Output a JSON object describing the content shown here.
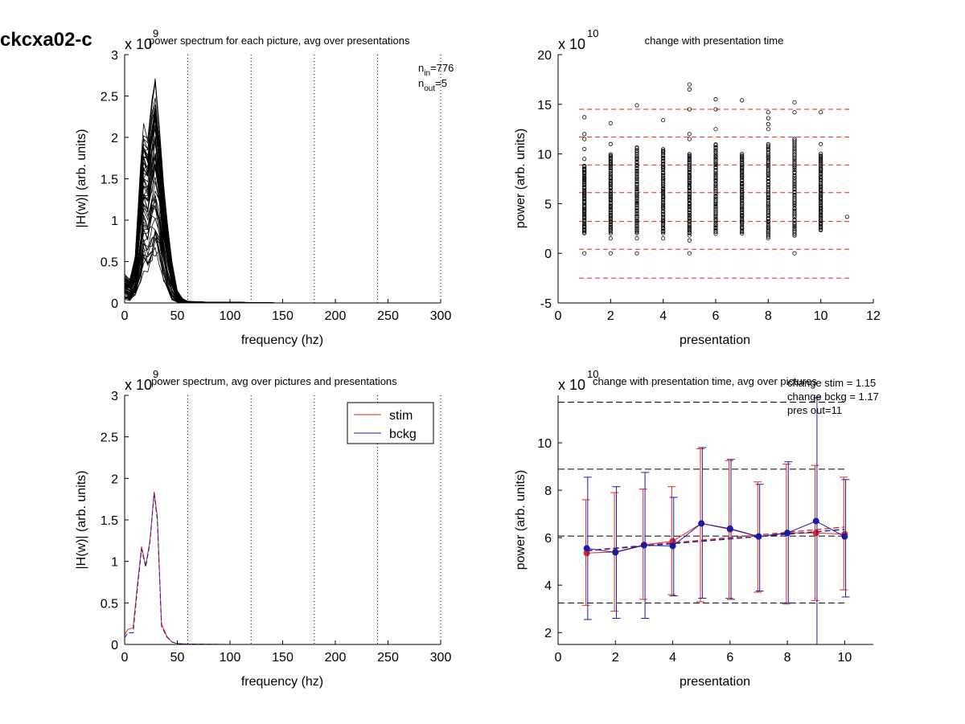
{
  "figure": {
    "title": "ckcxa02-c"
  },
  "chart_data": [
    {
      "type": "line",
      "title": "power spectrum for each picture, avg over presentations",
      "xlabel": "frequency (hz)",
      "ylabel": "|H(w)| (arb. units)",
      "exponent_label": "x 10",
      "exponent_power": "9",
      "xlim": [
        0,
        300
      ],
      "ylim": [
        0,
        3
      ],
      "xticks": [
        0,
        50,
        100,
        150,
        200,
        250,
        300
      ],
      "yticks": [
        0,
        0.5,
        1,
        1.5,
        2,
        2.5,
        3
      ],
      "ytick_labels": [
        "0",
        "0.5",
        "1",
        "1.5",
        "2",
        "2.5",
        "3"
      ],
      "vlines": [
        60,
        120,
        180,
        240,
        300
      ],
      "annotation": {
        "n_in_label": "n",
        "n_in_sub": "in",
        "n_in_value": "=776",
        "n_out_label": "n",
        "n_out_sub": "out",
        "n_out_value": "=5"
      },
      "x": [
        0,
        5,
        10,
        15,
        18,
        22,
        26,
        29,
        33,
        37,
        41,
        45,
        50,
        55,
        60,
        80,
        100,
        150,
        200,
        250,
        300
      ],
      "envelope": {
        "upper": [
          0.35,
          0.3,
          0.55,
          1.6,
          2.15,
          2.05,
          2.5,
          2.75,
          2.2,
          1.4,
          0.9,
          0.5,
          0.15,
          0.05,
          0.02,
          0.01,
          0.01,
          0.0,
          0.0,
          0.0,
          0.0
        ],
        "lower": [
          0.05,
          0.03,
          0.1,
          0.3,
          0.45,
          0.4,
          0.55,
          0.6,
          0.5,
          0.3,
          0.15,
          0.05,
          0.01,
          0.0,
          0.0,
          0.0,
          0.0,
          0.0,
          0.0,
          0.0,
          0.0
        ]
      },
      "trace_count": 60
    },
    {
      "type": "scatter",
      "title": "change with presentation time",
      "xlabel": "presentation",
      "ylabel": "power (arb. units)",
      "exponent_label": "x 10",
      "exponent_power": "10",
      "xlim": [
        0,
        12
      ],
      "ylim": [
        -5,
        20
      ],
      "xticks": [
        0,
        2,
        4,
        6,
        8,
        10,
        12
      ],
      "yticks": [
        -5,
        0,
        5,
        10,
        15,
        20
      ],
      "hlines": [
        -2.5,
        0.4,
        3.2,
        6.1,
        8.9,
        11.7,
        14.5
      ],
      "hline_color": "#e8251c",
      "columns": [
        {
          "x": 1,
          "min": 2.0,
          "max": 8.8,
          "n": 60,
          "outliers": [
            0,
            9.5,
            10.5,
            11.5,
            12.0,
            13.7
          ]
        },
        {
          "x": 2,
          "min": 2.0,
          "max": 10.0,
          "n": 60,
          "outliers": [
            0,
            1.5,
            11.0,
            13.1
          ]
        },
        {
          "x": 3,
          "min": 2.0,
          "max": 10.7,
          "n": 60,
          "outliers": [
            0,
            1.5,
            14.9
          ]
        },
        {
          "x": 4,
          "min": 2.0,
          "max": 10.5,
          "n": 60,
          "outliers": [
            1.5,
            13.4
          ]
        },
        {
          "x": 5,
          "min": 2.0,
          "max": 10.0,
          "n": 60,
          "outliers": [
            0,
            1.3,
            1.8,
            11.5,
            12.0,
            14.5,
            16.5,
            17.0
          ]
        },
        {
          "x": 6,
          "min": 2.0,
          "max": 11.0,
          "n": 60,
          "outliers": [
            12.5,
            14.5,
            15.5
          ]
        },
        {
          "x": 7,
          "min": 2.0,
          "max": 10.0,
          "n": 60,
          "outliers": [
            15.4
          ]
        },
        {
          "x": 8,
          "min": 1.5,
          "max": 11.0,
          "n": 60,
          "outliers": [
            12.5,
            13.0,
            13.6,
            14.2
          ]
        },
        {
          "x": 9,
          "min": 1.8,
          "max": 11.5,
          "n": 60,
          "outliers": [
            0,
            14.2,
            15.2
          ]
        },
        {
          "x": 10,
          "min": 2.3,
          "max": 10.0,
          "n": 60,
          "outliers": [
            11.0,
            14.2
          ]
        },
        {
          "x": 11,
          "min": 3.7,
          "max": 3.7,
          "n": 1,
          "outliers": []
        }
      ]
    },
    {
      "type": "line",
      "title": "power spectrum, avg over pictures and presentations",
      "xlabel": "frequency (hz)",
      "ylabel": "|H(w)| (arb. units)",
      "exponent_label": "x 10",
      "exponent_power": "9",
      "xlim": [
        0,
        300
      ],
      "ylim": [
        0,
        3
      ],
      "xticks": [
        0,
        50,
        100,
        150,
        200,
        250,
        300
      ],
      "yticks": [
        0,
        0.5,
        1,
        1.5,
        2,
        2.5,
        3
      ],
      "ytick_labels": [
        "0",
        "0.5",
        "1",
        "1.5",
        "2",
        "2.5",
        "3"
      ],
      "vlines": [
        60,
        120,
        180,
        240,
        300
      ],
      "legend_position": "top-right",
      "x": [
        0,
        3,
        8,
        12,
        16,
        20,
        24,
        28,
        31,
        35,
        40,
        45,
        50,
        60,
        100,
        150,
        200,
        250,
        300
      ],
      "series": [
        {
          "name": "stim",
          "color": "#e8251c",
          "values": [
            0.12,
            0.18,
            0.2,
            0.7,
            1.18,
            0.95,
            1.25,
            1.84,
            1.55,
            0.25,
            0.1,
            0.03,
            0.01,
            0.005,
            0.0,
            0.0,
            0.0,
            0.0,
            0.0
          ]
        },
        {
          "name": "bckg",
          "color": "#1a1aa6",
          "values": [
            0.08,
            0.14,
            0.14,
            0.65,
            1.15,
            0.93,
            1.22,
            1.82,
            1.5,
            0.22,
            0.09,
            0.03,
            0.01,
            0.005,
            0.0,
            0.0,
            0.0,
            0.0,
            0.0
          ]
        }
      ]
    },
    {
      "type": "line",
      "title": "change with presentation time, avg over pictures",
      "xlabel": "presentation",
      "ylabel": "power (arb. units)",
      "exponent_label": "x 10",
      "exponent_power": "10",
      "xlim": [
        0,
        11
      ],
      "ylim": [
        1.5,
        12
      ],
      "xticks": [
        0,
        2,
        4,
        6,
        8,
        10
      ],
      "yticks": [
        2,
        4,
        6,
        8,
        10
      ],
      "hlines": [
        3.25,
        6.07,
        8.89,
        11.71
      ],
      "annotation": [
        "change stim = 1.15",
        "change bckg = 1.17",
        "pres out=11"
      ],
      "x": [
        1,
        2,
        3,
        4,
        5,
        6,
        7,
        8,
        9,
        10
      ],
      "series": [
        {
          "name": "stim",
          "color": "#e8251c",
          "values": [
            5.35,
            5.4,
            5.7,
            5.85,
            6.6,
            6.35,
            6.05,
            6.2,
            6.2,
            6.15
          ],
          "err_low": [
            3.15,
            2.9,
            3.4,
            3.6,
            3.3,
            3.45,
            3.7,
            3.2,
            3.35,
            3.8
          ],
          "err_high": [
            7.6,
            7.9,
            8.05,
            8.15,
            9.75,
            9.25,
            8.35,
            9.1,
            9.05,
            8.55
          ],
          "trend": [
            5.45,
            6.45
          ]
        },
        {
          "name": "bckg",
          "color": "#1a1aa6",
          "values": [
            5.55,
            5.38,
            5.68,
            5.65,
            6.6,
            6.38,
            6.05,
            6.2,
            6.7,
            6.05
          ],
          "err_low": [
            2.55,
            2.6,
            2.6,
            3.55,
            3.45,
            3.4,
            3.75,
            3.25,
            1.5,
            3.5
          ],
          "err_high": [
            8.55,
            8.15,
            8.75,
            7.7,
            9.8,
            9.3,
            8.25,
            9.2,
            11.9,
            8.45
          ],
          "trend": [
            5.45,
            6.35
          ]
        }
      ]
    }
  ]
}
